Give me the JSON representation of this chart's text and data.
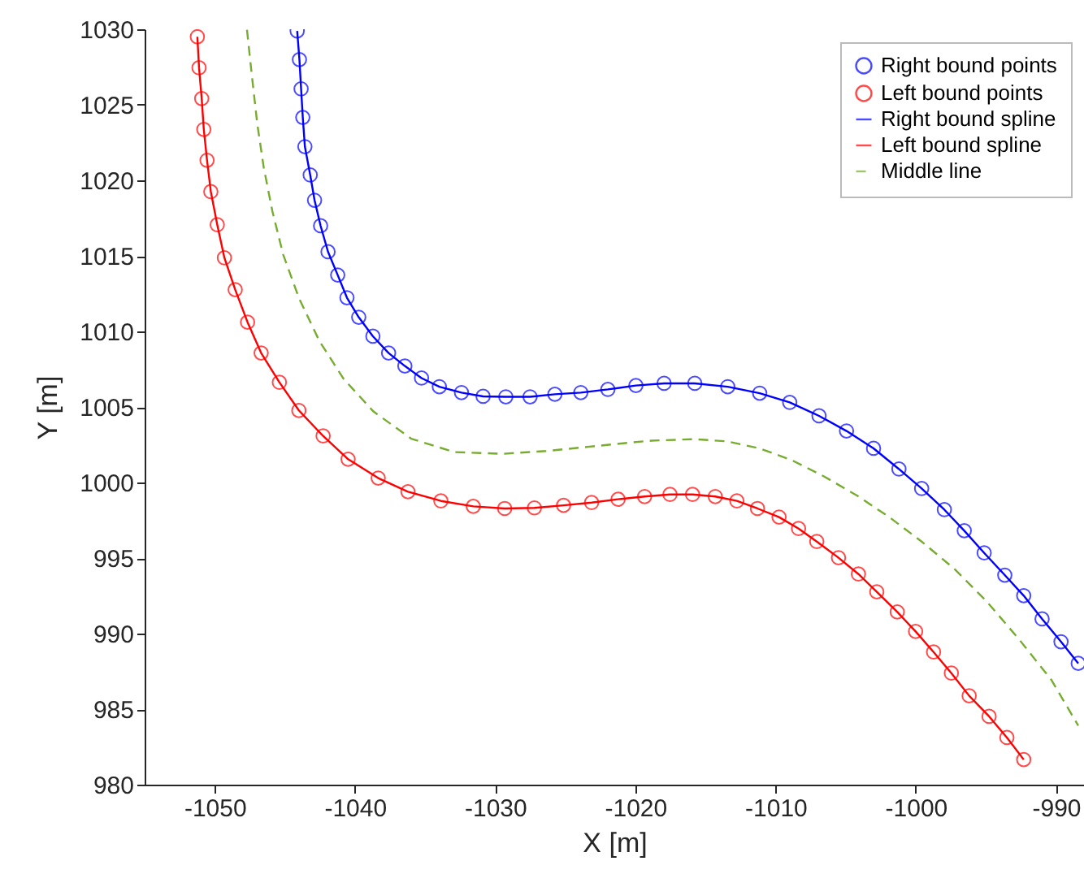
{
  "chart_data": {
    "type": "scatter",
    "xlabel": "X [m]",
    "ylabel": "Y [m]",
    "xlim": [
      -1055,
      -988
    ],
    "xticks": [
      -1050,
      -1040,
      -1030,
      -1020,
      -1010,
      -1000,
      -990
    ],
    "ylim": [
      980,
      1030
    ],
    "yticks": [
      980,
      985,
      990,
      995,
      1000,
      1005,
      1010,
      1015,
      1020,
      1025,
      1030
    ],
    "grid": false,
    "legend": "top right",
    "series": [
      {
        "name": "Right bound points",
        "marker": "circle",
        "color": "#0000ff",
        "x": [
          -1044.12,
          -1043.96,
          -1043.84,
          -1043.72,
          -1043.57,
          -1043.19,
          -1042.88,
          -1042.45,
          -1041.92,
          -1041.23,
          -1040.57,
          -1039.73,
          -1038.72,
          -1037.6,
          -1036.44,
          -1035.25,
          -1033.98,
          -1032.4,
          -1030.86,
          -1029.24,
          -1027.51,
          -1025.74,
          -1023.89,
          -1021.96,
          -1019.96,
          -1017.95,
          -1015.76,
          -1013.41,
          -1011.13,
          -1008.99,
          -1006.9,
          -1004.94,
          -1003.01,
          -1001.2,
          -999.58,
          -997.96,
          -996.54,
          -995.12,
          -993.65,
          -992.3,
          -990.99,
          -989.64,
          -988.41
        ],
        "values": [
          1029.89,
          1027.99,
          1026.05,
          1024.16,
          1022.23,
          1020.35,
          1018.68,
          1016.99,
          1015.27,
          1013.73,
          1012.23,
          1010.94,
          1009.68,
          1008.57,
          1007.71,
          1006.91,
          1006.34,
          1005.95,
          1005.7,
          1005.67,
          1005.67,
          1005.84,
          1005.95,
          1006.16,
          1006.42,
          1006.56,
          1006.56,
          1006.34,
          1005.91,
          1005.3,
          1004.41,
          1003.41,
          1002.26,
          1000.89,
          999.6,
          998.2,
          996.81,
          995.34,
          993.87,
          992.51,
          990.97,
          989.46,
          988.03
        ]
      },
      {
        "name": "Left bound points",
        "marker": "circle",
        "color": "#ff0000",
        "x": [
          -1051.24,
          -1051.12,
          -1050.93,
          -1050.78,
          -1050.55,
          -1050.28,
          -1049.82,
          -1049.31,
          -1048.54,
          -1047.66,
          -1046.69,
          -1045.39,
          -1044.0,
          -1042.27,
          -1040.49,
          -1038.34,
          -1036.22,
          -1033.87,
          -1031.56,
          -1029.32,
          -1027.2,
          -1025.12,
          -1023.12,
          -1021.23,
          -1019.34,
          -1017.53,
          -1015.92,
          -1014.3,
          -1012.76,
          -1011.29,
          -1009.75,
          -1008.36,
          -1007.06,
          -1005.51,
          -1004.09,
          -1002.78,
          -1001.32,
          -1000.01,
          -998.73,
          -997.46,
          -996.19,
          -994.77,
          -993.5,
          -992.3
        ],
        "values": [
          1029.5,
          1027.45,
          1025.41,
          1023.37,
          1021.33,
          1019.25,
          1017.06,
          1014.87,
          1012.76,
          1010.61,
          1008.57,
          1006.63,
          1004.77,
          1003.08,
          1001.54,
          1000.29,
          999.39,
          998.78,
          998.42,
          998.28,
          998.32,
          998.49,
          998.67,
          998.89,
          999.07,
          999.21,
          999.21,
          999.07,
          998.78,
          998.28,
          997.71,
          996.95,
          996.09,
          995.02,
          993.94,
          992.76,
          991.43,
          990.14,
          988.78,
          987.38,
          985.88,
          984.52,
          983.12,
          981.66
        ]
      },
      {
        "name": "Right bound spline",
        "type": "line",
        "line_style": "solid",
        "color": "#0000ff",
        "x": [
          -1044.12,
          -1043.96,
          -1043.84,
          -1043.72,
          -1043.57,
          -1043.19,
          -1042.88,
          -1042.45,
          -1041.92,
          -1041.23,
          -1040.57,
          -1039.73,
          -1038.72,
          -1037.6,
          -1036.44,
          -1035.25,
          -1033.98,
          -1032.4,
          -1030.86,
          -1029.24,
          -1027.51,
          -1025.74,
          -1023.89,
          -1021.96,
          -1019.96,
          -1017.95,
          -1015.76,
          -1013.41,
          -1011.13,
          -1008.99,
          -1006.9,
          -1004.94,
          -1003.01,
          -1001.2,
          -999.58,
          -997.96,
          -996.54,
          -995.12,
          -993.65,
          -992.3,
          -990.99,
          -989.64,
          -988.41
        ],
        "values": [
          1029.89,
          1027.99,
          1026.05,
          1024.16,
          1022.23,
          1020.35,
          1018.68,
          1016.99,
          1015.27,
          1013.73,
          1012.23,
          1010.94,
          1009.68,
          1008.57,
          1007.71,
          1006.91,
          1006.34,
          1005.95,
          1005.7,
          1005.67,
          1005.67,
          1005.84,
          1005.95,
          1006.16,
          1006.42,
          1006.56,
          1006.56,
          1006.34,
          1005.91,
          1005.3,
          1004.41,
          1003.41,
          1002.26,
          1000.89,
          999.6,
          998.2,
          996.81,
          995.34,
          993.87,
          992.51,
          990.97,
          989.46,
          988.03
        ]
      },
      {
        "name": "Left bound spline",
        "type": "line",
        "line_style": "solid",
        "color": "#ff0000",
        "x": [
          -1051.24,
          -1051.12,
          -1050.93,
          -1050.78,
          -1050.55,
          -1050.28,
          -1049.82,
          -1049.31,
          -1048.54,
          -1047.66,
          -1046.69,
          -1045.39,
          -1044.0,
          -1042.27,
          -1040.49,
          -1038.34,
          -1036.22,
          -1033.87,
          -1031.56,
          -1029.32,
          -1027.2,
          -1025.12,
          -1023.12,
          -1021.23,
          -1019.34,
          -1017.53,
          -1015.92,
          -1014.3,
          -1012.76,
          -1011.29,
          -1009.75,
          -1008.36,
          -1007.06,
          -1005.51,
          -1004.09,
          -1002.78,
          -1001.32,
          -1000.01,
          -998.73,
          -997.46,
          -996.19,
          -994.77,
          -993.5,
          -992.3
        ],
        "values": [
          1029.5,
          1027.45,
          1025.41,
          1023.37,
          1021.33,
          1019.25,
          1017.06,
          1014.87,
          1012.76,
          1010.61,
          1008.57,
          1006.63,
          1004.77,
          1003.08,
          1001.54,
          1000.29,
          999.39,
          998.78,
          998.42,
          998.28,
          998.32,
          998.49,
          998.67,
          998.89,
          999.07,
          999.21,
          999.21,
          999.07,
          998.78,
          998.28,
          997.71,
          996.95,
          996.09,
          995.02,
          993.94,
          992.76,
          991.43,
          990.14,
          988.78,
          987.38,
          985.88,
          984.52,
          983.12,
          981.66
        ]
      },
      {
        "name": "Middle line",
        "type": "line",
        "line_style": "dashed",
        "color": "#77ac30",
        "x": [
          -1047.7,
          -1047.35,
          -1046.96,
          -1046.5,
          -1045.89,
          -1045.12,
          -1044.0,
          -1042.53,
          -1040.8,
          -1038.68,
          -1035.99,
          -1032.9,
          -1029.44,
          -1026.36,
          -1023.27,
          -1020.58,
          -1018.84,
          -1015.76,
          -1013.45,
          -1011.14,
          -1008.83,
          -1006.52,
          -1004.2,
          -1001.89,
          -999.58,
          -997.27,
          -994.96,
          -992.65,
          -990.34,
          -988.41
        ],
        "values": [
          1029.96,
          1026.92,
          1023.69,
          1020.82,
          1017.96,
          1015.09,
          1012.22,
          1009.35,
          1006.85,
          1004.7,
          1002.9,
          1002.01,
          1001.9,
          1002.08,
          1002.37,
          1002.62,
          1002.77,
          1002.87,
          1002.72,
          1002.26,
          1001.47,
          1000.39,
          999.14,
          997.71,
          996.09,
          994.3,
          992.15,
          989.64,
          986.95,
          983.91
        ]
      }
    ]
  }
}
